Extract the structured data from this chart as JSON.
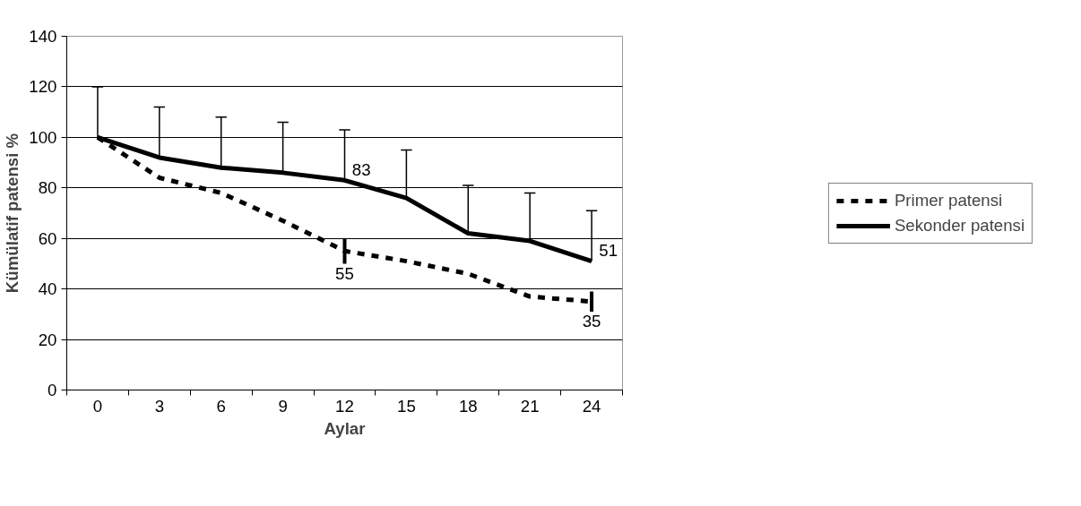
{
  "chart_data": {
    "type": "line",
    "xlabel": "Aylar",
    "ylabel": "Kümülatif patensi %",
    "categories": [
      "0",
      "3",
      "6",
      "9",
      "12",
      "15",
      "18",
      "21",
      "24"
    ],
    "series": [
      {
        "name": "Primer patensi",
        "color": "#000000",
        "line_style": "dashed",
        "values": [
          100,
          84,
          78,
          67,
          55,
          51,
          46,
          37,
          35
        ],
        "errors": [
          null,
          null,
          null,
          null,
          5,
          null,
          null,
          null,
          4
        ],
        "value_labels": [
          null,
          null,
          null,
          null,
          "55",
          null,
          null,
          null,
          "35"
        ]
      },
      {
        "name": "Sekonder patensi",
        "color": "#000000",
        "line_style": "solid",
        "values": [
          100,
          92,
          88,
          86,
          83,
          76,
          62,
          59,
          51
        ],
        "errors": [
          [
            100,
            120
          ],
          [
            92,
            112
          ],
          [
            88,
            108
          ],
          [
            86,
            106
          ],
          [
            83,
            103
          ],
          [
            76,
            95
          ],
          [
            62,
            81
          ],
          [
            59,
            78
          ],
          [
            51,
            71
          ]
        ],
        "value_labels": [
          null,
          null,
          null,
          null,
          "83",
          null,
          null,
          null,
          "51"
        ]
      }
    ],
    "ylim": [
      0,
      140
    ],
    "yticks": [
      0,
      20,
      40,
      60,
      80,
      100,
      120,
      140
    ],
    "grid": "y",
    "legend": "right",
    "marker": "none"
  }
}
